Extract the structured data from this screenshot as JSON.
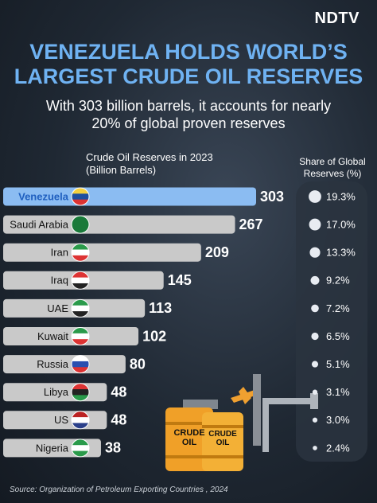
{
  "logo": "NDTV",
  "chart_data": {
    "type": "bar",
    "title": "VENEZUELA HOLDS WORLD’S LARGEST CRUDE OIL RESERVES",
    "subtitle": "With 303 billion barrels, it accounts for nearly 20% of global proven reserves",
    "value_axis_label": "Crude Oil Reserves in 2023 (Billion Barrels)",
    "categories": [
      "Venezuela",
      "Saudi Arabia",
      "Iran",
      "Iraq",
      "UAE",
      "Kuwait",
      "Russia",
      "Libya",
      "US",
      "Nigeria"
    ],
    "values": [
      303,
      267,
      209,
      145,
      113,
      102,
      80,
      48,
      48,
      38
    ],
    "colors": [
      "#8bbcf2",
      "#c9c9c9",
      "#c9c9c9",
      "#c9c9c9",
      "#c9c9c9",
      "#c9c9c9",
      "#c9c9c9",
      "#c9c9c9",
      "#c9c9c9",
      "#c9c9c9"
    ],
    "share": {
      "name": "Share of Global Reserves (%)",
      "values": [
        19.3,
        17.0,
        13.3,
        9.2,
        7.2,
        6.5,
        5.1,
        3.1,
        3.0,
        2.4
      ],
      "value_labels": [
        "19.3%",
        "17.0%",
        "13.3%",
        "9.2%",
        "7.2%",
        "6.5%",
        "5.1%",
        "3.1%",
        "3.0%",
        "2.4%"
      ],
      "color": "#e8ecf2"
    },
    "source": "Source: Organization of Petroleum Exporting Countries , 2024"
  },
  "illustration": {
    "barrel_label": "CRUDE OIL"
  }
}
